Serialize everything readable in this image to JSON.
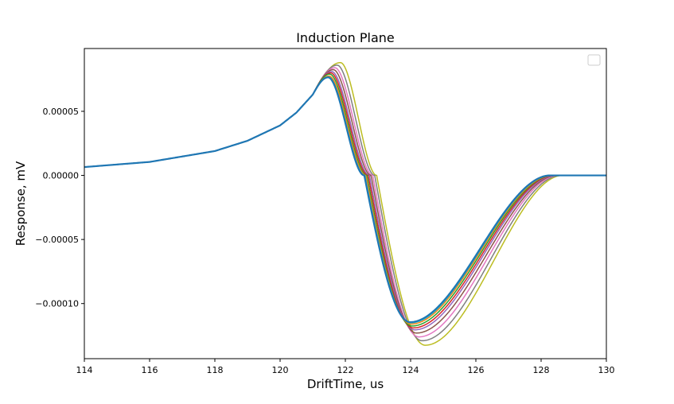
{
  "chart_data": {
    "type": "line",
    "title": "Induction Plane",
    "xlabel": "DriftTime, us",
    "ylabel": "Response, mV",
    "xlim": [
      114,
      130
    ],
    "ylim": [
      -0.000143,
      9.9e-05
    ],
    "xticks": [
      114,
      116,
      118,
      120,
      122,
      124,
      126,
      128,
      130
    ],
    "yticks": [
      -0.0001,
      -5e-05,
      0.0,
      5e-05
    ],
    "ytick_labels": [
      "−0.00010",
      "−0.00005",
      "0.00000",
      "0.00005"
    ],
    "grid": false,
    "legend": {
      "placement": "top-right",
      "entries": []
    },
    "series_model": {
      "x_samples": [
        114,
        116,
        118,
        119,
        120,
        120.5,
        121
      ],
      "y_samples": [
        6.5e-06,
        1.05e-05,
        1.9e-05,
        2.7e-05,
        3.9e-05,
        4.9e-05,
        6.3e-05
      ],
      "peak_x": 121.5,
      "peak_y": 7.65e-05,
      "zero_x": 122.6,
      "trough_x": 124.0,
      "trough_y": -0.000114,
      "settle_x": 128.3
    },
    "series": [
      {
        "color": "#bcbd22",
        "peak_y": 8.8e-05,
        "peak_x": 121.85,
        "trough_y": -0.0001325,
        "trough_x": 124.45,
        "shift": 0.36
      },
      {
        "color": "#7f7f7f",
        "peak_y": 8.6e-05,
        "peak_x": 121.75,
        "trough_y": -0.000129,
        "trough_x": 124.35,
        "shift": 0.3
      },
      {
        "color": "#e377c2",
        "peak_y": 8.4e-05,
        "peak_x": 121.68,
        "trough_y": -0.000126,
        "trough_x": 124.25,
        "shift": 0.24
      },
      {
        "color": "#8c564b",
        "peak_y": 8.25e-05,
        "peak_x": 121.63,
        "trough_y": -0.000123,
        "trough_x": 124.18,
        "shift": 0.19
      },
      {
        "color": "#9467bd",
        "peak_y": 8.1e-05,
        "peak_x": 121.58,
        "trough_y": -0.0001205,
        "trough_x": 124.12,
        "shift": 0.14
      },
      {
        "color": "#d62728",
        "peak_y": 8e-05,
        "peak_x": 121.55,
        "trough_y": -0.000119,
        "trough_x": 124.08,
        "shift": 0.1
      },
      {
        "color": "#2ca02c",
        "peak_y": 7.9e-05,
        "peak_x": 121.52,
        "trough_y": -0.0001175,
        "trough_x": 124.04,
        "shift": 0.06
      },
      {
        "color": "#ff7f0e",
        "peak_y": 7.75e-05,
        "peak_x": 121.5,
        "trough_y": -0.000116,
        "trough_x": 124.01,
        "shift": 0.03
      },
      {
        "color": "#17becf",
        "peak_y": 7.68e-05,
        "peak_x": 121.48,
        "trough_y": -0.000115,
        "trough_x": 124.0,
        "shift": 0.0
      },
      {
        "color": "#1f77b4",
        "peak_y": 7.65e-05,
        "peak_x": 121.47,
        "trough_y": -0.0001145,
        "trough_x": 123.98,
        "shift": -0.02
      }
    ]
  }
}
